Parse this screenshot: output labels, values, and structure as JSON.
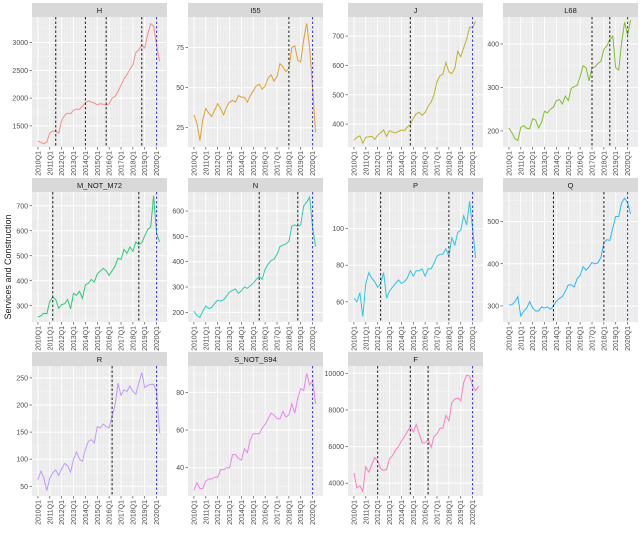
{
  "chart_data": {
    "type": "line",
    "layout": "facet-wrap 4 columns",
    "ylabel": "Services and Construction",
    "xlabel": "",
    "x_start": "2010Q1",
    "x_ticks": [
      "2010Q1",
      "2011Q1",
      "2012Q1",
      "2013Q1",
      "2014Q1",
      "2015Q1",
      "2016Q1",
      "2017Q1",
      "2018Q1",
      "2019Q1",
      "2020Q1"
    ],
    "grid": true,
    "vline_black_style": "dashed",
    "vline_blue": "2020Q1",
    "panels": [
      {
        "title": "H",
        "color": "#F8766D",
        "ylim": [
          1120,
          3460
        ],
        "yticks": [
          1500,
          2000,
          2500,
          3000
        ],
        "breaks": [
          "2011Q3",
          "2014Q1",
          "2015Q4",
          "2018Q4"
        ],
        "values": [
          1230,
          1200,
          1180,
          1210,
          1370,
          1410,
          1400,
          1370,
          1600,
          1690,
          1730,
          1720,
          1780,
          1800,
          1800,
          1850,
          1920,
          1950,
          1930,
          1910,
          1880,
          1900,
          1890,
          1870,
          1900,
          2000,
          2030,
          2120,
          2230,
          2350,
          2420,
          2520,
          2600,
          2820,
          2870,
          2960,
          2900,
          3150,
          3340,
          3300,
          2950,
          2660
        ]
      },
      {
        "title": "I55",
        "color": "#DB8E00",
        "ylim": [
          13,
          94
        ],
        "yticks": [
          25,
          50,
          75
        ],
        "breaks": [
          "2018Q1"
        ],
        "values": [
          33,
          28,
          17,
          30,
          37,
          34,
          32,
          36,
          40,
          37,
          33,
          38,
          41,
          42,
          41,
          45,
          44,
          44,
          41,
          45,
          48,
          51,
          52,
          49,
          51,
          56,
          58,
          54,
          57,
          65,
          63,
          60,
          62,
          75,
          76,
          67,
          66,
          80,
          90,
          75,
          50,
          22
        ]
      },
      {
        "title": "J",
        "color": "#AEA200",
        "ylim": [
          322,
          765
        ],
        "yticks": [
          400,
          500,
          600,
          700
        ],
        "breaks": [
          "2014Q4"
        ],
        "values": [
          345,
          355,
          360,
          335,
          355,
          357,
          358,
          348,
          362,
          370,
          380,
          358,
          378,
          373,
          370,
          375,
          380,
          378,
          390,
          398,
          420,
          435,
          440,
          430,
          440,
          460,
          475,
          500,
          545,
          565,
          570,
          610,
          578,
          572,
          590,
          648,
          630,
          660,
          690,
          730,
          730,
          750
        ]
      },
      {
        "title": "L68",
        "color": "#64B200",
        "ylim": [
          163,
          462
        ],
        "yticks": [
          200,
          300,
          400
        ],
        "breaks": [
          "2017Q1",
          "2018Q3"
        ],
        "values": [
          207,
          196,
          182,
          178,
          208,
          212,
          206,
          205,
          228,
          225,
          207,
          220,
          245,
          242,
          250,
          255,
          270,
          272,
          262,
          280,
          270,
          298,
          302,
          305,
          325,
          350,
          345,
          315,
          345,
          347,
          355,
          360,
          388,
          395,
          410,
          418,
          345,
          340,
          405,
          450,
          420,
          455
        ]
      },
      {
        "title": "M_NOT_M72",
        "color": "#00BD5C",
        "ylim": [
          235,
          755
        ],
        "yticks": [
          300,
          400,
          500,
          600,
          700
        ],
        "breaks": [
          "2011Q2",
          "2018Q3"
        ],
        "values": [
          255,
          260,
          270,
          268,
          318,
          335,
          325,
          290,
          305,
          308,
          325,
          288,
          350,
          342,
          358,
          330,
          383,
          390,
          405,
          395,
          428,
          438,
          450,
          440,
          422,
          440,
          460,
          490,
          485,
          525,
          510,
          535,
          518,
          555,
          545,
          552,
          580,
          605,
          615,
          740,
          590,
          555
        ]
      },
      {
        "title": "N",
        "color": "#00C1A7",
        "ylim": [
          162,
          675
        ],
        "yticks": [
          200,
          300,
          400,
          500,
          600
        ],
        "breaks": [
          "2015Q3",
          "2018Q4"
        ],
        "values": [
          205,
          188,
          180,
          205,
          225,
          215,
          220,
          235,
          248,
          245,
          250,
          265,
          280,
          287,
          292,
          275,
          285,
          300,
          295,
          305,
          315,
          330,
          342,
          330,
          370,
          390,
          405,
          410,
          428,
          460,
          465,
          470,
          480,
          540,
          545,
          540,
          545,
          620,
          635,
          655,
          535,
          460
        ]
      },
      {
        "title": "P",
        "color": "#00BADE",
        "ylim": [
          49,
          120
        ],
        "yticks": [
          60,
          80,
          100
        ],
        "breaks": [
          "2012Q2",
          "2018Q1"
        ],
        "values": [
          62,
          60,
          65,
          52,
          70,
          76,
          73,
          71,
          68,
          70,
          76,
          62,
          66,
          68,
          70,
          72,
          70,
          71,
          73,
          77,
          74,
          77,
          77,
          78,
          74,
          78,
          78,
          81,
          85,
          86,
          86,
          89,
          85,
          95,
          91,
          98,
          99,
          107,
          102,
          115,
          100,
          84
        ]
      },
      {
        "title": "Q",
        "color": "#00A6FF",
        "ylim": [
          262,
          570
        ],
        "yticks": [
          300,
          400,
          500
        ],
        "breaks": [
          "2013Q4",
          "2018Q1"
        ],
        "values": [
          302,
          303,
          310,
          322,
          276,
          288,
          295,
          310,
          295,
          288,
          288,
          298,
          295,
          298,
          292,
          300,
          312,
          318,
          322,
          335,
          350,
          350,
          345,
          365,
          372,
          393,
          385,
          392,
          403,
          400,
          402,
          415,
          450,
          457,
          455,
          485,
          512,
          512,
          545,
          555,
          545,
          518
        ]
      },
      {
        "title": "R",
        "color": "#B385FF",
        "ylim": [
          32,
          272
        ],
        "yticks": [
          50,
          100,
          150,
          200,
          250
        ],
        "breaks": [
          "2016Q2"
        ],
        "values": [
          62,
          78,
          65,
          42,
          65,
          75,
          80,
          70,
          82,
          92,
          88,
          76,
          100,
          113,
          100,
          96,
          118,
          133,
          136,
          130,
          160,
          158,
          165,
          160,
          158,
          180,
          200,
          240,
          218,
          228,
          225,
          235,
          225,
          220,
          240,
          260,
          232,
          236,
          238,
          238,
          225,
          148
        ]
      },
      {
        "title": "S_NOT_S94",
        "color": "#EF67EB",
        "ylim": [
          25,
          94
        ],
        "yticks": [
          40,
          60,
          80
        ],
        "breaks": [],
        "values": [
          28,
          32,
          29,
          29,
          33,
          34,
          34,
          35,
          35,
          39,
          39,
          40,
          40,
          47,
          47,
          45,
          44,
          50,
          48,
          55,
          58,
          58,
          58,
          61,
          63,
          66,
          69,
          68,
          66,
          66,
          70,
          67,
          68,
          74,
          69,
          77,
          82,
          81,
          90,
          84,
          86,
          74
        ]
      },
      {
        "title": "F",
        "color": "#FF63B6",
        "ylim": [
          3300,
          10400
        ],
        "yticks": [
          4000,
          6000,
          8000,
          10000
        ],
        "breaks": [
          "2012Q1",
          "2014Q4",
          "2016Q2"
        ],
        "values": [
          4550,
          3750,
          3850,
          3550,
          4900,
          4600,
          5000,
          5400,
          5200,
          4800,
          4700,
          4750,
          5350,
          5500,
          5800,
          6000,
          6300,
          6550,
          6800,
          7100,
          6800,
          7200,
          6700,
          6200,
          6200,
          6400,
          5950,
          6550,
          6700,
          7000,
          7000,
          7700,
          7400,
          8400,
          8600,
          8650,
          8500,
          9500,
          9900,
          9850,
          9300,
          9050,
          9300
        ]
      }
    ]
  }
}
